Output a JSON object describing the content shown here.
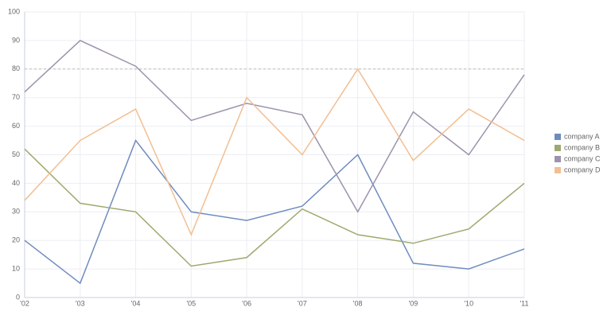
{
  "chart_data": {
    "type": "line",
    "categories": [
      "'02",
      "'03",
      "'04",
      "'05",
      "'06",
      "'07",
      "'08",
      "'09",
      "'10",
      "'11"
    ],
    "series": [
      {
        "name": "company A",
        "color": "#6f8cbf",
        "values": [
          20,
          5,
          55,
          30,
          27,
          32,
          50,
          12,
          10,
          17
        ]
      },
      {
        "name": "company B",
        "color": "#9caa6e",
        "values": [
          52,
          33,
          30,
          11,
          14,
          31,
          22,
          19,
          24,
          40
        ]
      },
      {
        "name": "company C",
        "color": "#9d93ad",
        "values": [
          72,
          90,
          81,
          62,
          68,
          64,
          30,
          65,
          50,
          78
        ]
      },
      {
        "name": "company D",
        "color": "#f2bf92",
        "values": [
          34,
          55,
          66,
          22,
          70,
          50,
          80,
          48,
          66,
          55
        ]
      }
    ],
    "ylim": [
      0,
      100
    ],
    "yticks": [
      0,
      10,
      20,
      30,
      40,
      50,
      60,
      70,
      80,
      90,
      100
    ],
    "reference_line": 80,
    "grid": true,
    "legend": "right"
  }
}
